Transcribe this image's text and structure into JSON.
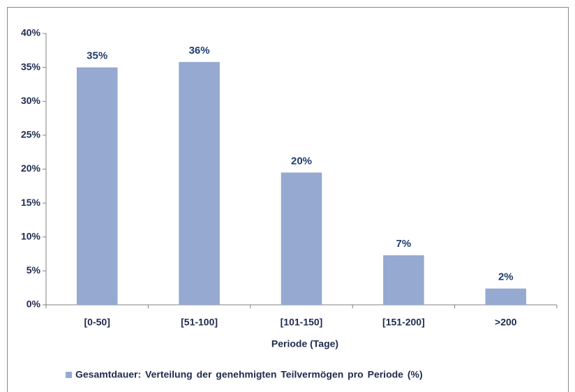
{
  "chart_data": {
    "type": "bar",
    "x_label": "Periode (Tage)",
    "categories": [
      "[0-50]",
      "[51-100]",
      "[101-150]",
      "[151-200]",
      ">200"
    ],
    "series": [
      {
        "name": "Gesamtdauer: Verteilung der genehmigten Teilvermögen pro Periode (%)",
        "color": "#95a9d1",
        "values": [
          35,
          35.8,
          19.5,
          7.3,
          2.4
        ],
        "value_labels": [
          "35%",
          "36%",
          "20%",
          "7%",
          "2%"
        ]
      }
    ],
    "ylim": [
      0,
      40
    ],
    "yticks": [
      {
        "value": 0,
        "label": "0%"
      },
      {
        "value": 5,
        "label": "5%"
      },
      {
        "value": 10,
        "label": "10%"
      },
      {
        "value": 15,
        "label": "15%"
      },
      {
        "value": 20,
        "label": "20%"
      },
      {
        "value": 25,
        "label": "25%"
      },
      {
        "value": 30,
        "label": "30%"
      },
      {
        "value": 35,
        "label": "35%"
      },
      {
        "value": 40,
        "label": "40%"
      }
    ],
    "grid": false,
    "legend": "bottom"
  }
}
